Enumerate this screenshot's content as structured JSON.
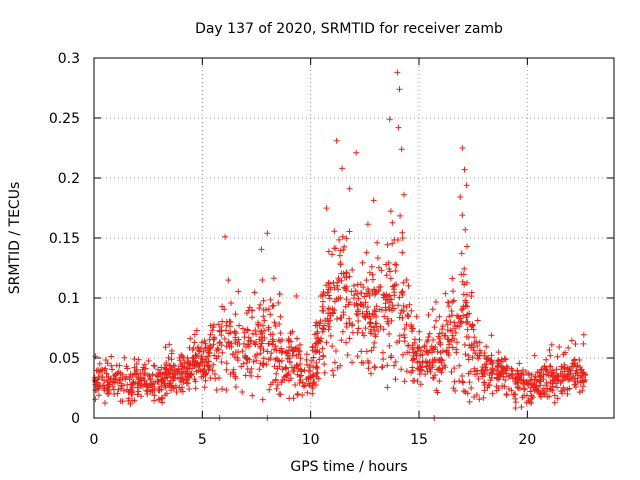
{
  "chart_data": {
    "type": "scatter",
    "title": "Day 137 of 2020, SRMTID for receiver zamb",
    "xlabel": "GPS time / hours",
    "ylabel": "SRMTID / TECUs",
    "xlim": [
      0,
      24
    ],
    "ylim": [
      0,
      0.3
    ],
    "xticks": [
      0,
      5,
      10,
      15,
      20
    ],
    "yticks": [
      0,
      0.05,
      0.1,
      0.15,
      0.2,
      0.25,
      0.3
    ],
    "xtick_labels": [
      "0",
      "5",
      "10",
      "15",
      "20"
    ],
    "ytick_labels": [
      "0",
      "0.05",
      "0.1",
      "0.15",
      "0.2",
      "0.25",
      "0.3"
    ],
    "grid": true,
    "marker": "+",
    "series": [
      {
        "name": "SRMTID",
        "color": "#e8231a",
        "profile": [
          {
            "t": 0.0,
            "lo": 0.015,
            "hi": 0.075
          },
          {
            "t": 1.0,
            "lo": 0.01,
            "hi": 0.065
          },
          {
            "t": 2.0,
            "lo": 0.012,
            "hi": 0.07
          },
          {
            "t": 3.0,
            "lo": 0.01,
            "hi": 0.065
          },
          {
            "t": 4.0,
            "lo": 0.02,
            "hi": 0.075
          },
          {
            "t": 5.0,
            "lo": 0.025,
            "hi": 0.09
          },
          {
            "t": 6.0,
            "lo": 0.02,
            "hi": 0.15
          },
          {
            "t": 7.0,
            "lo": 0.02,
            "hi": 0.12
          },
          {
            "t": 8.0,
            "lo": 0.01,
            "hi": 0.155
          },
          {
            "t": 9.0,
            "lo": 0.015,
            "hi": 0.11
          },
          {
            "t": 10.0,
            "lo": 0.015,
            "hi": 0.085
          },
          {
            "t": 10.5,
            "lo": 0.04,
            "hi": 0.14
          },
          {
            "t": 11.0,
            "lo": 0.03,
            "hi": 0.23
          },
          {
            "t": 12.0,
            "lo": 0.035,
            "hi": 0.22
          },
          {
            "t": 13.0,
            "lo": 0.03,
            "hi": 0.2
          },
          {
            "t": 14.0,
            "lo": 0.02,
            "hi": 0.29
          },
          {
            "t": 14.6,
            "lo": 0.025,
            "hi": 0.16
          },
          {
            "t": 15.0,
            "lo": 0.025,
            "hi": 0.1
          },
          {
            "t": 16.0,
            "lo": 0.02,
            "hi": 0.12
          },
          {
            "t": 17.0,
            "lo": 0.01,
            "hi": 0.225
          },
          {
            "t": 17.6,
            "lo": 0.015,
            "hi": 0.13
          },
          {
            "t": 18.0,
            "lo": 0.015,
            "hi": 0.09
          },
          {
            "t": 19.0,
            "lo": 0.01,
            "hi": 0.085
          },
          {
            "t": 20.0,
            "lo": 0.005,
            "hi": 0.065
          },
          {
            "t": 21.0,
            "lo": 0.01,
            "hi": 0.07
          },
          {
            "t": 22.0,
            "lo": 0.02,
            "hi": 0.08
          },
          {
            "t": 22.7,
            "lo": 0.02,
            "hi": 0.07
          }
        ],
        "peaks": [
          {
            "x": 6.05,
            "y": 0.151
          },
          {
            "x": 8.0,
            "y": 0.154
          },
          {
            "x": 11.2,
            "y": 0.231
          },
          {
            "x": 11.45,
            "y": 0.208
          },
          {
            "x": 11.8,
            "y": 0.191
          },
          {
            "x": 12.1,
            "y": 0.221
          },
          {
            "x": 13.65,
            "y": 0.249
          },
          {
            "x": 14.0,
            "y": 0.288
          },
          {
            "x": 14.1,
            "y": 0.274
          },
          {
            "x": 14.05,
            "y": 0.242
          },
          {
            "x": 14.2,
            "y": 0.224
          },
          {
            "x": 17.0,
            "y": 0.225
          },
          {
            "x": 17.1,
            "y": 0.207
          },
          {
            "x": 17.2,
            "y": 0.194
          },
          {
            "x": 5.8,
            "y": 0.0
          },
          {
            "x": 8.0,
            "y": 0.0
          },
          {
            "x": 15.7,
            "y": 0.0
          }
        ],
        "n_points": 1700
      }
    ]
  }
}
